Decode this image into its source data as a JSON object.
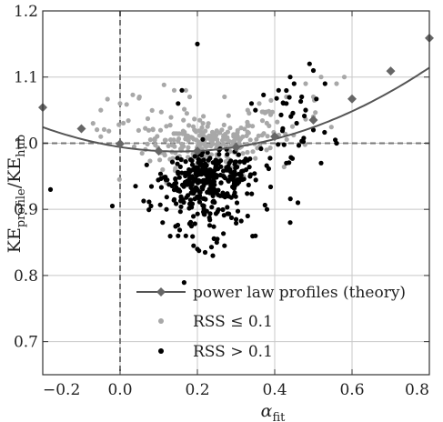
{
  "chart_data": {
    "type": "scatter",
    "title": "",
    "xlabel": "α",
    "xlabel_sub": "fit",
    "ylabel": "KE",
    "ylabel_sub1": "profile",
    "ylabel_mid": "/KE",
    "ylabel_sub2": "hub",
    "xlim": [
      -0.2,
      0.8
    ],
    "ylim": [
      0.65,
      1.2
    ],
    "xticks": [
      -0.2,
      0.0,
      0.2,
      0.4,
      0.6,
      0.8
    ],
    "xtick_labels": [
      "−0.2",
      "0.0",
      "0.2",
      "0.4",
      "0.6",
      "0.8"
    ],
    "yticks": [
      0.7,
      0.8,
      0.9,
      1.0,
      1.1,
      1.2
    ],
    "ytick_labels": [
      "0.7",
      "0.8",
      "0.9",
      "1.0",
      "1.1",
      "1.2"
    ],
    "grid": true,
    "legend_position": "bottom-center",
    "reference_lines": {
      "x": 0.0,
      "y": 1.0
    },
    "colors": {
      "theory": "#555555",
      "low_rss": "#a8a8a8",
      "high_rss": "#000000",
      "reference": "#777777",
      "grid": "#c8c8c8"
    },
    "series": [
      {
        "name": "power law profiles (theory)",
        "kind": "line-with-diamonds",
        "curve": {
          "x0": 0.15,
          "y0": 0.9875,
          "curvature": 0.3
        },
        "markers_x": [
          -0.2,
          -0.1,
          0.0,
          0.1,
          0.2,
          0.3,
          0.4,
          0.5,
          0.6,
          0.7,
          0.8
        ],
        "markers_y": [
          1.054,
          1.022,
          0.999,
          0.988,
          0.988,
          0.994,
          1.01,
          1.035,
          1.067,
          1.109,
          1.159
        ]
      },
      {
        "name": "RSS ≤ 0.1",
        "kind": "points",
        "generator": {
          "clusters": [
            {
              "n": 210,
              "cx": 0.22,
              "cy": 1.0,
              "sx": 0.075,
              "sy": 0.018
            },
            {
              "n": 40,
              "cx": 0.38,
              "cy": 1.03,
              "sx": 0.06,
              "sy": 0.02
            },
            {
              "n": 20,
              "cx": 0.06,
              "cy": 1.03,
              "sx": 0.06,
              "sy": 0.025
            }
          ]
        },
        "points": [
          [
            -0.05,
            1.05
          ],
          [
            -0.07,
            1.03
          ],
          [
            -0.05,
            1.01
          ],
          [
            0.0,
            1.06
          ],
          [
            0.05,
            1.07
          ],
          [
            0.17,
            1.08
          ],
          [
            0.18,
            1.07
          ],
          [
            0.47,
            1.07
          ],
          [
            0.5,
            1.07
          ],
          [
            0.56,
            1.09
          ],
          [
            0.58,
            1.1
          ],
          [
            0.48,
            1.09
          ],
          [
            0.52,
            1.1
          ],
          [
            0.33,
            1.05
          ],
          [
            0.36,
            1.06
          ],
          [
            0.43,
            1.07
          ],
          [
            0.5,
            1.04
          ],
          [
            0.27,
            1.07
          ],
          [
            0.14,
            1.08
          ],
          [
            0.12,
            0.94
          ],
          [
            0.11,
            0.96
          ],
          [
            0.32,
            0.95
          ]
        ]
      },
      {
        "name": "RSS > 0.1",
        "kind": "points",
        "generator": {
          "clusters": [
            {
              "n": 240,
              "cx": 0.24,
              "cy": 0.95,
              "sx": 0.06,
              "sy": 0.017
            },
            {
              "n": 120,
              "cx": 0.2,
              "cy": 0.91,
              "sx": 0.06,
              "sy": 0.03
            },
            {
              "n": 30,
              "cx": 0.45,
              "cy": 1.03,
              "sx": 0.05,
              "sy": 0.04
            }
          ]
        },
        "points": [
          [
            0.2,
            1.15
          ],
          [
            0.44,
            1.1
          ],
          [
            0.45,
            1.09
          ],
          [
            0.47,
            1.07
          ],
          [
            0.49,
            1.12
          ],
          [
            0.5,
            1.11
          ],
          [
            0.41,
            1.08
          ],
          [
            0.48,
            1.05
          ],
          [
            0.5,
            1.02
          ],
          [
            0.43,
            1.06
          ],
          [
            0.34,
            1.06
          ],
          [
            0.35,
            1.05
          ],
          [
            0.16,
            1.08
          ],
          [
            0.15,
            1.06
          ],
          [
            0.53,
            1.09
          ],
          [
            -0.18,
            0.93
          ],
          [
            -0.02,
            0.905
          ],
          [
            0.04,
            0.935
          ],
          [
            0.08,
            0.905
          ],
          [
            0.38,
            0.9
          ],
          [
            0.44,
            0.88
          ],
          [
            0.46,
            0.91
          ],
          [
            0.52,
            0.97
          ],
          [
            0.56,
            1.0
          ],
          [
            0.43,
            0.97
          ],
          [
            0.2,
            0.84
          ],
          [
            0.22,
            0.835
          ],
          [
            0.24,
            0.83
          ],
          [
            0.27,
            0.845
          ],
          [
            0.17,
            0.86
          ],
          [
            0.15,
            0.86
          ],
          [
            0.35,
            0.86
          ],
          [
            0.11,
            0.88
          ],
          [
            0.33,
            0.89
          ],
          [
            0.3,
            0.885
          ],
          [
            0.25,
            0.85
          ],
          [
            0.19,
            0.845
          ],
          [
            0.12,
            0.9
          ]
        ]
      }
    ],
    "legend": [
      {
        "label": "power law profiles (theory)",
        "symbol": "line-diamond"
      },
      {
        "label": "RSS ≤ 0.1",
        "symbol": "dot-gray"
      },
      {
        "label": "RSS > 0.1",
        "symbol": "dot-black"
      }
    ]
  }
}
